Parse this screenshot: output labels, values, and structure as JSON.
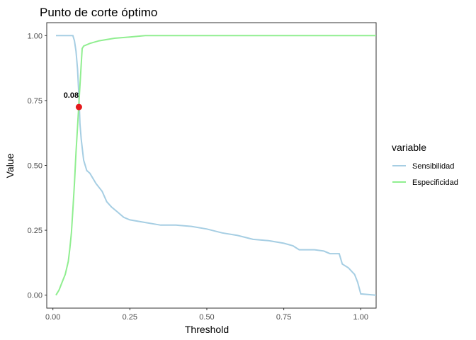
{
  "chart_data": {
    "type": "line",
    "title": "Punto de corte óptimo",
    "xlabel": "Threshold",
    "ylabel": "Value",
    "xlim": [
      -0.02,
      1.05
    ],
    "ylim": [
      -0.05,
      1.05
    ],
    "x_ticks": [
      0.0,
      0.25,
      0.5,
      0.75,
      1.0
    ],
    "x_tick_labels": [
      "0.00",
      "0.25",
      "0.50",
      "0.75",
      "1.00"
    ],
    "y_ticks": [
      0.0,
      0.25,
      0.5,
      0.75,
      1.0
    ],
    "y_tick_labels": [
      "0.00",
      "0.25",
      "0.50",
      "0.75",
      "1.00"
    ],
    "grid": false,
    "legend": {
      "title": "variable",
      "position": "right"
    },
    "series": [
      {
        "name": "Sensibilidad",
        "color": "#a6cee3",
        "points": [
          [
            0.01,
            1.0
          ],
          [
            0.065,
            1.0
          ],
          [
            0.07,
            0.98
          ],
          [
            0.075,
            0.94
          ],
          [
            0.08,
            0.87
          ],
          [
            0.083,
            0.8
          ],
          [
            0.086,
            0.72
          ],
          [
            0.088,
            0.66
          ],
          [
            0.092,
            0.6
          ],
          [
            0.1,
            0.52
          ],
          [
            0.11,
            0.48
          ],
          [
            0.12,
            0.47
          ],
          [
            0.13,
            0.45
          ],
          [
            0.14,
            0.43
          ],
          [
            0.16,
            0.4
          ],
          [
            0.175,
            0.36
          ],
          [
            0.19,
            0.34
          ],
          [
            0.21,
            0.32
          ],
          [
            0.23,
            0.3
          ],
          [
            0.25,
            0.29
          ],
          [
            0.3,
            0.28
          ],
          [
            0.35,
            0.27
          ],
          [
            0.4,
            0.27
          ],
          [
            0.45,
            0.265
          ],
          [
            0.5,
            0.255
          ],
          [
            0.55,
            0.24
          ],
          [
            0.6,
            0.23
          ],
          [
            0.65,
            0.215
          ],
          [
            0.7,
            0.21
          ],
          [
            0.75,
            0.2
          ],
          [
            0.78,
            0.19
          ],
          [
            0.8,
            0.175
          ],
          [
            0.85,
            0.175
          ],
          [
            0.88,
            0.17
          ],
          [
            0.9,
            0.16
          ],
          [
            0.93,
            0.16
          ],
          [
            0.94,
            0.12
          ],
          [
            0.96,
            0.105
          ],
          [
            0.98,
            0.08
          ],
          [
            0.99,
            0.05
          ],
          [
            1.0,
            0.005
          ],
          [
            1.05,
            0.0
          ]
        ]
      },
      {
        "name": "Especificidad",
        "color": "#90ee90",
        "points": [
          [
            0.01,
            0.0
          ],
          [
            0.02,
            0.02
          ],
          [
            0.03,
            0.05
          ],
          [
            0.04,
            0.08
          ],
          [
            0.05,
            0.13
          ],
          [
            0.055,
            0.18
          ],
          [
            0.06,
            0.24
          ],
          [
            0.065,
            0.33
          ],
          [
            0.07,
            0.43
          ],
          [
            0.075,
            0.55
          ],
          [
            0.08,
            0.65
          ],
          [
            0.085,
            0.75
          ],
          [
            0.09,
            0.85
          ],
          [
            0.095,
            0.95
          ],
          [
            0.1,
            0.96
          ],
          [
            0.12,
            0.97
          ],
          [
            0.15,
            0.98
          ],
          [
            0.2,
            0.99
          ],
          [
            0.25,
            0.995
          ],
          [
            0.3,
            1.0
          ],
          [
            0.5,
            1.0
          ],
          [
            0.75,
            1.0
          ],
          [
            1.0,
            1.0
          ],
          [
            1.05,
            1.0
          ]
        ]
      }
    ],
    "optimal_point": {
      "x": 0.0845,
      "y": 0.725,
      "label": "0.08",
      "color": "#e41a1c"
    }
  }
}
